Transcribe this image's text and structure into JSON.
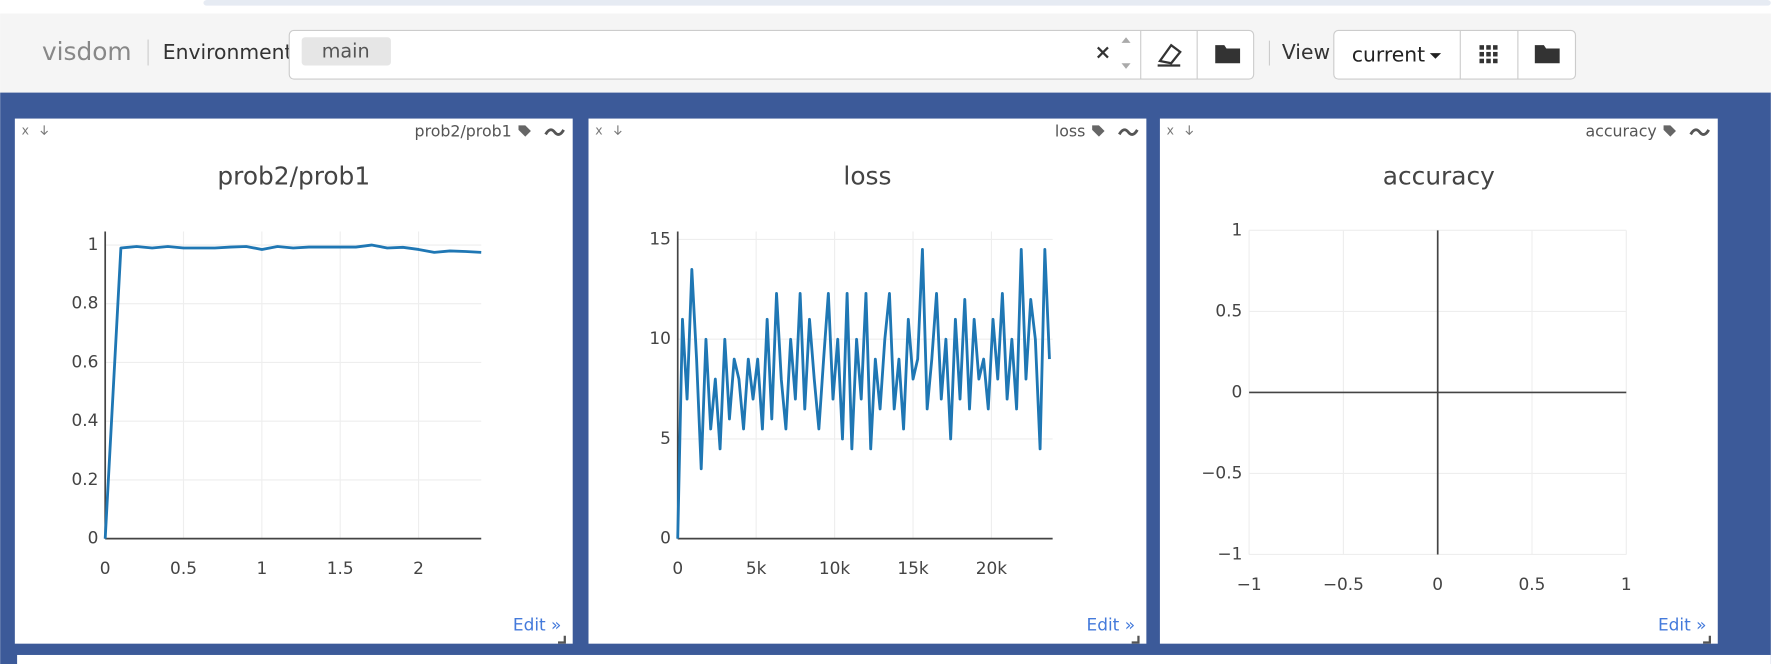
{
  "header": {
    "brand": "visdom",
    "environment_label": "Environment",
    "environment": "main",
    "view_label": "View",
    "view": "current"
  },
  "pane": {
    "close": "x",
    "edit": "Edit »"
  },
  "chart_data": [
    {
      "type": "line",
      "title": "prob2/prob1",
      "x": [
        0,
        0.1,
        0.2,
        0.3,
        0.4,
        0.5,
        0.6,
        0.7,
        0.8,
        0.9,
        1,
        1.1,
        1.2,
        1.3,
        1.4,
        1.5,
        1.6,
        1.7,
        1.8,
        1.9,
        2,
        2.1,
        2.2,
        2.3,
        2.4
      ],
      "values": [
        0,
        0.99,
        0.995,
        0.99,
        0.995,
        0.99,
        0.99,
        0.99,
        0.993,
        0.995,
        0.985,
        0.995,
        0.99,
        0.993,
        0.993,
        0.993,
        0.993,
        1.0,
        0.99,
        0.992,
        0.985,
        0.975,
        0.98,
        0.978,
        0.975
      ],
      "color": "#1f77b4",
      "xlim": [
        0,
        2.4
      ],
      "ylim": [
        0,
        1.046
      ],
      "xticks": [
        0,
        0.5,
        1,
        1.5,
        2
      ],
      "yticks": [
        0,
        0.2,
        0.4,
        0.6,
        0.8,
        1
      ],
      "grid": true
    },
    {
      "type": "line",
      "title": "loss",
      "x": [
        0,
        300,
        600,
        900,
        1200,
        1500,
        1800,
        2100,
        2400,
        2700,
        3000,
        3300,
        3600,
        3900,
        4200,
        4500,
        4800,
        5100,
        5400,
        5700,
        6000,
        6300,
        6600,
        6900,
        7200,
        7500,
        7800,
        8100,
        8400,
        8700,
        9000,
        9300,
        9600,
        9900,
        10200,
        10500,
        10800,
        11100,
        11400,
        11700,
        12000,
        12300,
        12600,
        12900,
        13200,
        13500,
        13800,
        14100,
        14400,
        14700,
        15000,
        15300,
        15600,
        15900,
        16200,
        16500,
        16800,
        17100,
        17400,
        17700,
        18000,
        18300,
        18600,
        18900,
        19200,
        19500,
        19800,
        20100,
        20400,
        20700,
        21000,
        21300,
        21600,
        21900,
        22200,
        22500,
        22800,
        23100,
        23400,
        23700
      ],
      "values": [
        0,
        11,
        7,
        13.5,
        9,
        3.5,
        10,
        5.5,
        8,
        4.5,
        10,
        6,
        9,
        8,
        5.5,
        9,
        7,
        9,
        5.5,
        11,
        6,
        12.3,
        8,
        5.5,
        10,
        7,
        12.3,
        6.5,
        11,
        8,
        5.5,
        9,
        12.3,
        7,
        10,
        5,
        12.3,
        4.5,
        10,
        7,
        12.3,
        4.5,
        9,
        6.5,
        10,
        12.3,
        6.5,
        9,
        5.5,
        11,
        8,
        9,
        14.5,
        6.5,
        9,
        12.3,
        7,
        10,
        5,
        11,
        7,
        12,
        6.5,
        11,
        8,
        9,
        6.5,
        11,
        8,
        12.3,
        7,
        10,
        6.5,
        14.5,
        8,
        12,
        10,
        4.5,
        14.5,
        9
      ],
      "color": "#1f77b4",
      "xlim": [
        0,
        23900
      ],
      "ylim": [
        0,
        15.4
      ],
      "xticks": [
        0,
        {
          "value": 5000,
          "label": "5k"
        },
        {
          "value": 10000,
          "label": "10k"
        },
        {
          "value": 15000,
          "label": "15k"
        },
        {
          "value": 20000,
          "label": "20k"
        }
      ],
      "yticks": [
        0,
        5,
        10,
        15
      ],
      "grid": true
    },
    {
      "type": "line",
      "title": "accuracy",
      "x": [],
      "values": [],
      "color": "#1f77b4",
      "xlim": [
        -1,
        1
      ],
      "ylim": [
        -1,
        1
      ],
      "xticks": [
        {
          "value": -1,
          "label": "−1"
        },
        {
          "value": -0.5,
          "label": "−0.5"
        },
        0,
        0.5,
        1
      ],
      "yticks": [
        {
          "value": -1,
          "label": "−1"
        },
        {
          "value": -0.5,
          "label": "−0.5"
        },
        0,
        0.5,
        1
      ],
      "grid": true
    }
  ]
}
